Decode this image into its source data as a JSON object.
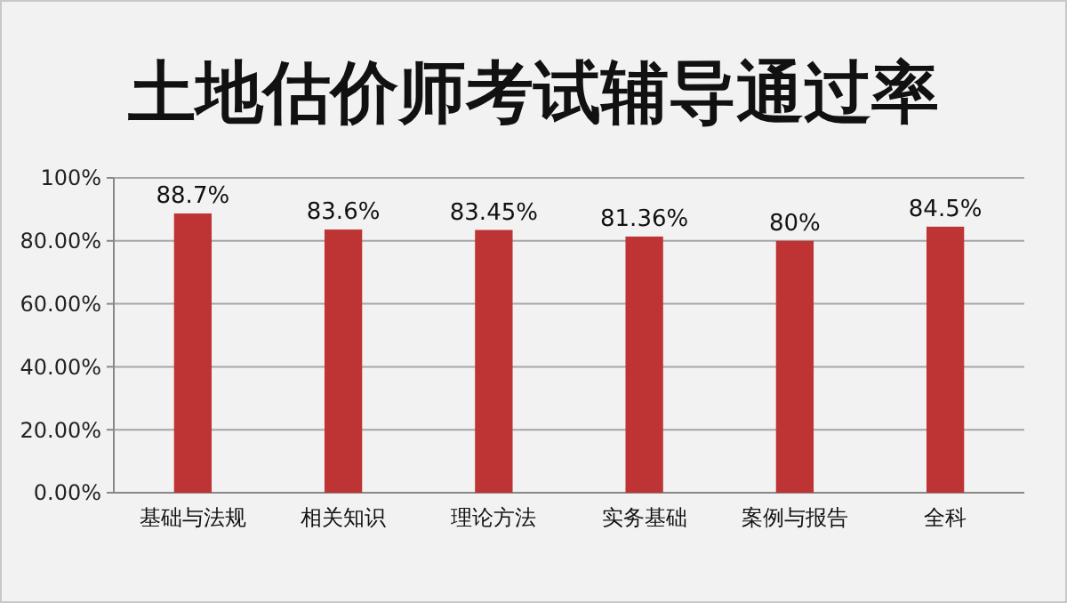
{
  "chart_data": {
    "type": "bar",
    "title": "土地估价师考试辅导通过率",
    "categories": [
      "基础与法规",
      "相关知识",
      "理论方法",
      "实务基础",
      "案例与报告",
      "全科"
    ],
    "values": [
      88.7,
      83.6,
      83.45,
      81.36,
      80,
      84.5
    ],
    "value_labels": [
      "88.7%",
      "83.6%",
      "83.45%",
      "81.36%",
      "80%",
      "84.5%"
    ],
    "color": "#be3434",
    "ylim": [
      0,
      100
    ],
    "yticks": [
      {
        "value": 0,
        "label": "0.00%"
      },
      {
        "value": 20,
        "label": "20.00%"
      },
      {
        "value": 40,
        "label": "40.00%"
      },
      {
        "value": 60,
        "label": "60.00%"
      },
      {
        "value": 80,
        "label": "80.00%"
      },
      {
        "value": 100,
        "label": "100%"
      }
    ],
    "grid": "y"
  }
}
